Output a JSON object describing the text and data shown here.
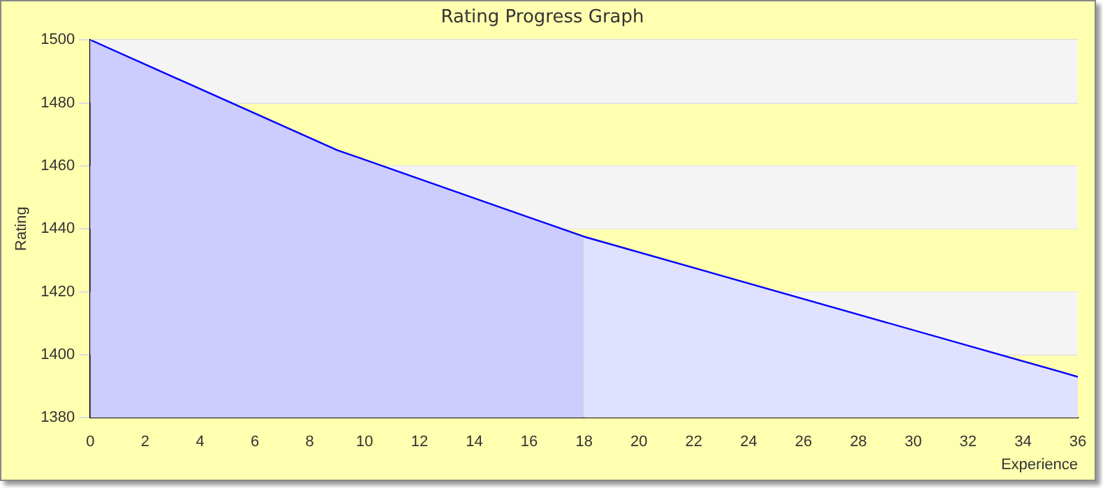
{
  "chart_data": {
    "type": "area",
    "title": "Rating Progress Graph",
    "xlabel": "Experience",
    "ylabel": "Rating",
    "xlim": [
      0,
      36
    ],
    "xticks": [
      0,
      2,
      4,
      6,
      8,
      10,
      12,
      14,
      16,
      18,
      20,
      22,
      24,
      26,
      28,
      30,
      32,
      34,
      36
    ],
    "ylim": [
      1380,
      1500
    ],
    "yticks": [
      1380,
      1400,
      1420,
      1440,
      1460,
      1480,
      1500
    ],
    "grid": "y",
    "legend": false,
    "series": [
      {
        "x": [
          0,
          9,
          18
        ],
        "values": [
          1500,
          1465,
          1437.5
        ],
        "color": "#ccccff"
      },
      {
        "x": [
          18,
          36
        ],
        "values": [
          1437.5,
          1393
        ],
        "color": "#e0e0ff"
      },
      {
        "type": "line",
        "x": [
          0,
          9,
          18,
          36
        ],
        "values": [
          1500,
          1465,
          1437.5,
          1393
        ],
        "color": "#0000ff"
      }
    ]
  }
}
